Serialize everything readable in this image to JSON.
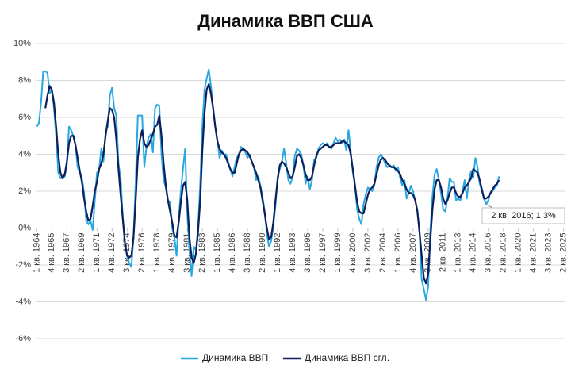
{
  "chart_data": {
    "type": "line",
    "title": "Динамика ВВП США",
    "categories": [
      "1 кв. 1964",
      null,
      null,
      null,
      null,
      null,
      null,
      "4 кв. 1965",
      null,
      null,
      null,
      null,
      null,
      null,
      "3 кв. 1967",
      null,
      null,
      null,
      null,
      null,
      null,
      "2 кв. 1969",
      null,
      null,
      null,
      null,
      null,
      null,
      "1 кв. 1971",
      null,
      null,
      null,
      null,
      null,
      null,
      "4 кв. 1972",
      null,
      null,
      null,
      null,
      null,
      null,
      "3 кв. 1974",
      null,
      null,
      null,
      null,
      null,
      null,
      "2 кв. 1976",
      null,
      null,
      null,
      null,
      null,
      null,
      "1 кв. 1978",
      null,
      null,
      null,
      null,
      null,
      null,
      "4 кв. 1979",
      null,
      null,
      null,
      null,
      null,
      null,
      "3 кв. 1981",
      null,
      null,
      null,
      null,
      null,
      null,
      "2 кв. 1983",
      null,
      null,
      null,
      null,
      null,
      null,
      "1 кв. 1985",
      null,
      null,
      null,
      null,
      null,
      null,
      "4 кв. 1986",
      null,
      null,
      null,
      null,
      null,
      null,
      "3 кв. 1988",
      null,
      null,
      null,
      null,
      null,
      null,
      "2 кв. 1990",
      null,
      null,
      null,
      null,
      null,
      null,
      "1 кв. 1992",
      null,
      null,
      null,
      null,
      null,
      null,
      "4 кв. 1993",
      null,
      null,
      null,
      null,
      null,
      null,
      "3 кв. 1995",
      null,
      null,
      null,
      null,
      null,
      null,
      "2 кв. 1997",
      null,
      null,
      null,
      null,
      null,
      null,
      "1 кв. 1999",
      null,
      null,
      null,
      null,
      null,
      null,
      "4 кв. 2000",
      null,
      null,
      null,
      null,
      null,
      null,
      "3 кв. 2002",
      null,
      null,
      null,
      null,
      null,
      null,
      "2 кв. 2004",
      null,
      null,
      null,
      null,
      null,
      null,
      "1 кв. 2006",
      null,
      null,
      null,
      null,
      null,
      null,
      "4 кв. 2007",
      null,
      null,
      null,
      null,
      null,
      null,
      "3 кв. 2009",
      null,
      null,
      null,
      null,
      null,
      null,
      "2 кв. 2011",
      null,
      null,
      null,
      null,
      null,
      null,
      "1 кв. 2013",
      null,
      null,
      null,
      null,
      null,
      null,
      "4 кв. 2014",
      null,
      null,
      null,
      null,
      null,
      null,
      "3 кв. 2016",
      null,
      null,
      null,
      null,
      null,
      null,
      "2 кв. 2018",
      null,
      null,
      null,
      null,
      null,
      null,
      "1 кв. 2020",
      null,
      null,
      null,
      null,
      null,
      null,
      "4 кв. 2021",
      null,
      null,
      null,
      null,
      null,
      null,
      "3 кв. 2023",
      null,
      null,
      null,
      null,
      null,
      null,
      "2 кв. 2025"
    ],
    "series": [
      {
        "name": "Динамика ВВП",
        "color": "#29a8e0",
        "values": [
          5.5,
          5.7,
          6.8,
          8.5,
          8.5,
          8.4,
          7.3,
          7.5,
          6.5,
          5.0,
          3.0,
          2.7,
          2.7,
          2.8,
          3.4,
          5.5,
          5.3,
          5.0,
          4.5,
          3.3,
          3.0,
          2.7,
          1.9,
          0.4,
          0.2,
          0.4,
          -0.1,
          1.5,
          3.0,
          3.2,
          4.3,
          3.6,
          5.2,
          5.5,
          7.2,
          7.6,
          6.5,
          6.1,
          3.5,
          2.7,
          0.6,
          -0.8,
          -1.5,
          -1.9,
          -2.1,
          -0.5,
          2.5,
          6.1,
          6.1,
          6.1,
          3.3,
          4.4,
          4.9,
          5.1,
          4.1,
          6.5,
          6.7,
          6.6,
          4.0,
          2.6,
          2.2,
          1.5,
          1.4,
          0.0,
          -0.5,
          -1.5,
          0.5,
          2.0,
          3.2,
          4.3,
          0.8,
          -1.2,
          -2.6,
          -1.0,
          -1.2,
          0.0,
          2.4,
          5.5,
          7.5,
          8.1,
          8.6,
          7.7,
          6.5,
          5.5,
          4.8,
          3.8,
          4.2,
          4.0,
          4.0,
          3.6,
          3.2,
          2.8,
          3.3,
          3.8,
          4.0,
          4.4,
          4.3,
          4.1,
          3.8,
          4.0,
          3.6,
          3.3,
          2.6,
          2.8,
          2.3,
          1.7,
          0.9,
          -0.3,
          -1.0,
          -0.7,
          0.1,
          1.2,
          2.8,
          3.2,
          3.6,
          4.3,
          3.5,
          2.6,
          2.4,
          2.8,
          3.9,
          4.3,
          4.2,
          4.0,
          3.4,
          2.4,
          2.8,
          2.1,
          2.6,
          3.7,
          3.8,
          4.3,
          4.5,
          4.6,
          4.5,
          4.6,
          4.4,
          4.3,
          4.6,
          4.9,
          4.7,
          4.8,
          4.6,
          4.8,
          4.2,
          5.3,
          4.2,
          3.0,
          2.3,
          1.0,
          0.5,
          0.2,
          1.3,
          1.8,
          2.2,
          2.1,
          2.0,
          2.3,
          3.3,
          3.8,
          4.0,
          3.8,
          3.5,
          3.3,
          3.4,
          3.3,
          3.4,
          3.1,
          3.3,
          2.7,
          2.3,
          2.6,
          1.6,
          1.9,
          2.3,
          2.0,
          1.5,
          1.0,
          -0.3,
          -2.8,
          -3.3,
          -3.9,
          -3.2,
          -0.2,
          1.7,
          2.9,
          3.2,
          2.6,
          1.9,
          1.0,
          0.9,
          1.6,
          2.7,
          2.5,
          2.5,
          1.5,
          1.6,
          1.5,
          2.0,
          2.6,
          1.6,
          2.6,
          3.1,
          2.7,
          3.8,
          3.3,
          2.4,
          2.0,
          1.6,
          1.3,
          1.5,
          1.9,
          2.0,
          2.2,
          2.3,
          2.8,
          null,
          null,
          null,
          null,
          null,
          null,
          null,
          null,
          null,
          null,
          null,
          null,
          null,
          null,
          null,
          null,
          null,
          null,
          null,
          null,
          null,
          null,
          null,
          null,
          null,
          null,
          null,
          null,
          null,
          null
        ]
      },
      {
        "name": "Динамика ВВП сгл.",
        "color": "#0d1f5c",
        "values": [
          null,
          null,
          null,
          null,
          6.5,
          7.2,
          7.7,
          7.5,
          6.8,
          5.5,
          4.0,
          3.0,
          2.7,
          2.9,
          3.6,
          4.6,
          5.0,
          5.0,
          4.5,
          3.8,
          3.1,
          2.5,
          1.6,
          0.9,
          0.4,
          0.5,
          1.2,
          2.0,
          2.5,
          3.2,
          3.5,
          4.0,
          5.0,
          5.8,
          6.5,
          6.4,
          6.0,
          4.8,
          3.2,
          1.8,
          0.5,
          -0.8,
          -1.5,
          -1.6,
          -1.5,
          -0.5,
          1.5,
          3.8,
          4.8,
          5.3,
          4.6,
          4.4,
          4.5,
          4.8,
          5.1,
          5.5,
          5.6,
          6.1,
          5.0,
          3.5,
          2.3,
          1.5,
          0.9,
          0.3,
          -0.4,
          -0.5,
          0.3,
          1.4,
          2.3,
          2.5,
          1.5,
          -0.5,
          -1.6,
          -1.9,
          -1.4,
          -0.2,
          1.5,
          4.2,
          6.2,
          7.5,
          7.8,
          7.3,
          6.5,
          5.5,
          4.7,
          4.3,
          4.1,
          4.0,
          3.8,
          3.5,
          3.2,
          3.0,
          3.0,
          3.5,
          4.0,
          4.2,
          4.3,
          4.2,
          4.1,
          3.9,
          3.6,
          3.3,
          3.0,
          2.6,
          2.2,
          1.5,
          0.8,
          0.0,
          -0.6,
          -0.5,
          0.3,
          1.5,
          2.6,
          3.4,
          3.6,
          3.5,
          3.3,
          3.0,
          2.7,
          2.8,
          3.3,
          3.9,
          4.0,
          3.8,
          3.4,
          2.9,
          2.6,
          2.6,
          2.8,
          3.4,
          3.9,
          4.2,
          4.3,
          4.4,
          4.5,
          4.5,
          4.4,
          4.4,
          4.5,
          4.6,
          4.6,
          4.6,
          4.7,
          4.7,
          4.6,
          4.5,
          4.0,
          3.2,
          2.3,
          1.4,
          0.9,
          0.8,
          0.8,
          1.3,
          1.8,
          2.1,
          2.2,
          2.4,
          2.9,
          3.4,
          3.7,
          3.8,
          3.7,
          3.5,
          3.4,
          3.3,
          3.3,
          3.2,
          3.1,
          2.9,
          2.6,
          2.4,
          2.1,
          1.9,
          1.9,
          1.8,
          1.5,
          0.9,
          -0.2,
          -1.5,
          -2.7,
          -3.0,
          -2.5,
          -0.7,
          1.0,
          2.1,
          2.6,
          2.6,
          2.2,
          1.6,
          1.3,
          1.5,
          1.9,
          2.2,
          2.2,
          1.9,
          1.7,
          1.7,
          1.9,
          2.2,
          2.3,
          2.5,
          2.7,
          3.2,
          3.1,
          3.0,
          2.6,
          2.1,
          1.6,
          1.6,
          1.7,
          1.9,
          2.1,
          2.3,
          2.4,
          2.6,
          null,
          null,
          null,
          null,
          null,
          null,
          null,
          null,
          null,
          null,
          null,
          null,
          null,
          null,
          null,
          null,
          null,
          null,
          null,
          null,
          null,
          null,
          null,
          null,
          null,
          null,
          null,
          null,
          null,
          null
        ]
      }
    ],
    "ylim": [
      -6,
      10
    ],
    "yticks": [
      {
        "value": -6,
        "label": "-6%"
      },
      {
        "value": -4,
        "label": "-4%"
      },
      {
        "value": -2,
        "label": "-2%"
      },
      {
        "value": 0,
        "label": "0%"
      },
      {
        "value": 2,
        "label": "2%"
      },
      {
        "value": 4,
        "label": "4%"
      },
      {
        "value": 6,
        "label": "6%"
      },
      {
        "value": 8,
        "label": "8%"
      },
      {
        "value": 10,
        "label": "10%"
      }
    ],
    "grid": true,
    "annotation": "2 кв. 2016; 1,3%"
  }
}
